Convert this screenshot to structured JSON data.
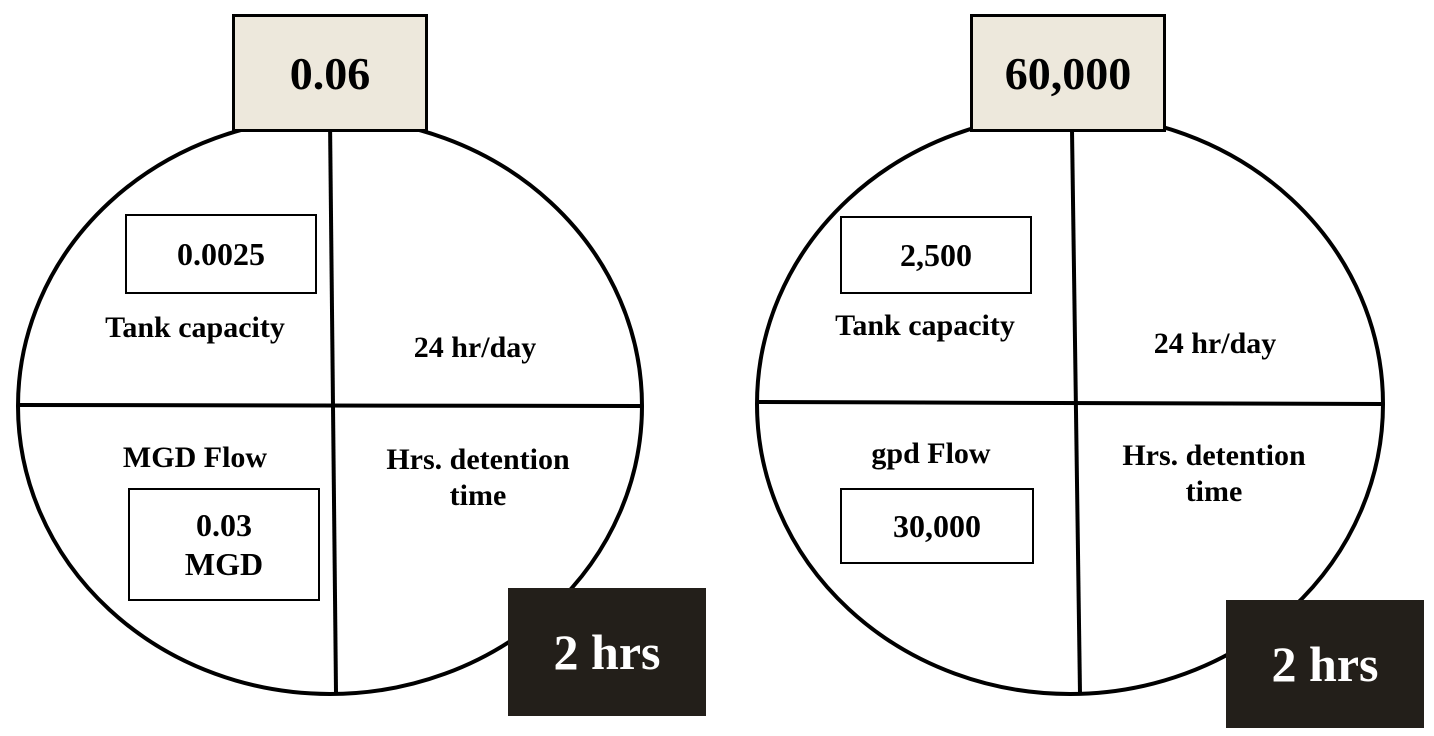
{
  "colors": {
    "answer_box_fill": "#ede8dc",
    "result_box_fill": "#231f1a",
    "result_text": "#ffffff",
    "line": "#000000"
  },
  "wheels": [
    {
      "top_value": "0.06",
      "top_left": {
        "value": "0.0025",
        "label": "Tank capacity"
      },
      "top_right": {
        "label": "24 hr/day"
      },
      "bottom_left": {
        "label": "MGD Flow",
        "value_line1": "0.03",
        "value_line2": "MGD"
      },
      "bottom_right": {
        "label_line1": "Hrs. detention",
        "label_line2": "time"
      },
      "result": "2 hrs"
    },
    {
      "top_value": "60,000",
      "top_left": {
        "value": "2,500",
        "label": "Tank capacity"
      },
      "top_right": {
        "label": "24 hr/day"
      },
      "bottom_left": {
        "label": "gpd Flow",
        "value_line1": "30,000",
        "value_line2": ""
      },
      "bottom_right": {
        "label_line1": "Hrs. detention",
        "label_line2": "time"
      },
      "result": "2 hrs"
    }
  ]
}
